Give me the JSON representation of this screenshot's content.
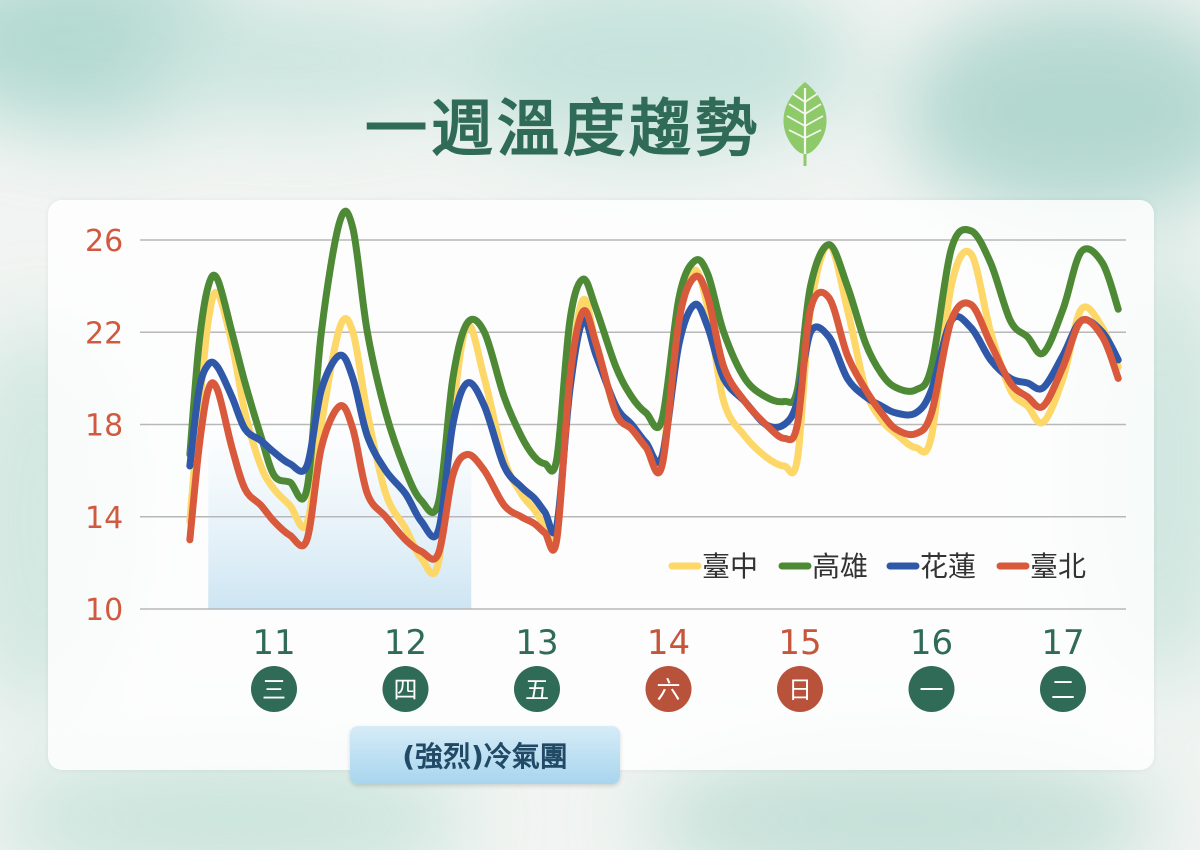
{
  "title": "一週溫度趨勢",
  "annotation": "(強烈)冷氣團",
  "colors": {
    "title": "#2f6b57",
    "axis_labels": "#cf5a3f",
    "weekday_badge": "#2f6b57",
    "weekend_badge": "#b9523b",
    "cold_air_band": "#cde5f3"
  },
  "chart_data": {
    "type": "line",
    "title": "一週溫度趨勢",
    "ylim": [
      10,
      26
    ],
    "yticks": [
      10,
      14,
      18,
      22,
      26
    ],
    "grid": true,
    "legend_position": "bottom-right",
    "days": [
      {
        "date": "11",
        "weekday": "三",
        "weekend": false
      },
      {
        "date": "12",
        "weekday": "四",
        "weekend": false
      },
      {
        "date": "13",
        "weekday": "五",
        "weekend": false
      },
      {
        "date": "14",
        "weekday": "六",
        "weekend": true
      },
      {
        "date": "15",
        "weekday": "日",
        "weekend": true
      },
      {
        "date": "16",
        "weekday": "一",
        "weekend": false
      },
      {
        "date": "17",
        "weekday": "二",
        "weekend": false
      }
    ],
    "highlight_range": {
      "from_day": 10.5,
      "to_day": 12.5,
      "label": "(強烈)冷氣團"
    },
    "x": [
      10.36,
      10.43,
      10.5,
      10.57,
      10.68,
      10.78,
      10.9,
      11.0,
      11.12,
      11.25,
      11.36,
      11.5,
      11.6,
      11.71,
      11.85,
      12.0,
      12.12,
      12.25,
      12.36,
      12.47,
      12.6,
      12.75,
      12.88,
      12.98,
      13.06,
      13.15,
      13.25,
      13.35,
      13.45,
      13.6,
      13.72,
      13.83,
      13.95,
      14.08,
      14.2,
      14.3,
      14.42,
      14.58,
      14.74,
      14.88,
      14.98,
      15.08,
      15.22,
      15.36,
      15.5,
      15.62,
      15.73,
      15.88,
      16.0,
      16.15,
      16.3,
      16.45,
      16.6,
      16.73,
      16.85,
      17.0,
      17.14,
      17.3,
      17.42
    ],
    "series": [
      {
        "name": "臺中",
        "color": "#fdd768",
        "values": [
          13.8,
          18.5,
          22.5,
          23.7,
          21.5,
          18.5,
          16.2,
          15.2,
          14.5,
          13.7,
          18.0,
          22.2,
          22.0,
          18.5,
          15.0,
          13.5,
          12.2,
          12.0,
          18.5,
          22.3,
          20.0,
          16.5,
          15.0,
          14.3,
          13.6,
          13.2,
          20.0,
          23.4,
          21.5,
          18.5,
          17.8,
          17.0,
          16.5,
          23.0,
          24.7,
          23.0,
          19.0,
          17.5,
          16.6,
          16.2,
          16.5,
          23.0,
          25.8,
          23.0,
          19.5,
          18.2,
          17.6,
          17.0,
          17.5,
          24.0,
          25.4,
          22.0,
          19.5,
          18.8,
          18.1,
          20.0,
          23.0,
          22.2,
          20.5
        ]
      },
      {
        "name": "高雄",
        "color": "#4e8a35",
        "values": [
          16.7,
          21.5,
          24.0,
          24.3,
          22.0,
          19.8,
          17.5,
          15.8,
          15.5,
          15.2,
          22.0,
          26.8,
          26.5,
          22.0,
          18.5,
          16.0,
          14.7,
          14.6,
          20.0,
          22.4,
          22.0,
          19.2,
          17.5,
          16.6,
          16.3,
          16.5,
          22.5,
          24.3,
          23.0,
          20.5,
          19.2,
          18.5,
          18.2,
          23.5,
          25.1,
          24.5,
          22.0,
          20.0,
          19.2,
          19.0,
          19.5,
          24.0,
          25.8,
          24.0,
          21.5,
          20.2,
          19.6,
          19.5,
          20.5,
          25.6,
          26.4,
          25.0,
          22.5,
          21.8,
          21.1,
          23.0,
          25.5,
          25.0,
          23.0
        ]
      },
      {
        "name": "花蓮",
        "color": "#2f58a8",
        "values": [
          16.2,
          19.5,
          20.6,
          20.5,
          19.2,
          17.8,
          17.3,
          16.8,
          16.3,
          16.2,
          19.5,
          21.0,
          20.0,
          17.5,
          16.0,
          15.0,
          13.8,
          13.4,
          18.0,
          19.8,
          18.8,
          16.2,
          15.3,
          14.8,
          14.2,
          13.6,
          19.5,
          22.5,
          21.0,
          18.8,
          18.0,
          17.2,
          16.6,
          21.5,
          23.2,
          22.2,
          20.0,
          19.0,
          18.0,
          18.0,
          19.0,
          22.0,
          21.8,
          20.0,
          19.2,
          18.8,
          18.5,
          18.5,
          19.5,
          22.5,
          22.2,
          20.8,
          20.0,
          19.8,
          19.6,
          21.0,
          22.5,
          22.0,
          20.8
        ]
      },
      {
        "name": "臺北",
        "color": "#d9593c",
        "values": [
          13.0,
          17.0,
          19.5,
          19.5,
          17.0,
          15.2,
          14.5,
          13.8,
          13.2,
          13.0,
          17.0,
          18.8,
          17.8,
          15.0,
          14.0,
          13.0,
          12.5,
          12.4,
          15.8,
          16.7,
          16.0,
          14.5,
          14.0,
          13.7,
          13.3,
          13.0,
          20.0,
          22.9,
          21.5,
          18.5,
          17.8,
          17.0,
          16.2,
          22.5,
          24.4,
          23.5,
          20.5,
          19.0,
          18.0,
          17.4,
          18.0,
          23.0,
          23.5,
          21.0,
          19.5,
          18.5,
          17.8,
          17.6,
          18.5,
          22.5,
          23.2,
          21.5,
          19.8,
          19.2,
          18.8,
          20.5,
          22.5,
          21.8,
          20.0
        ]
      }
    ]
  }
}
